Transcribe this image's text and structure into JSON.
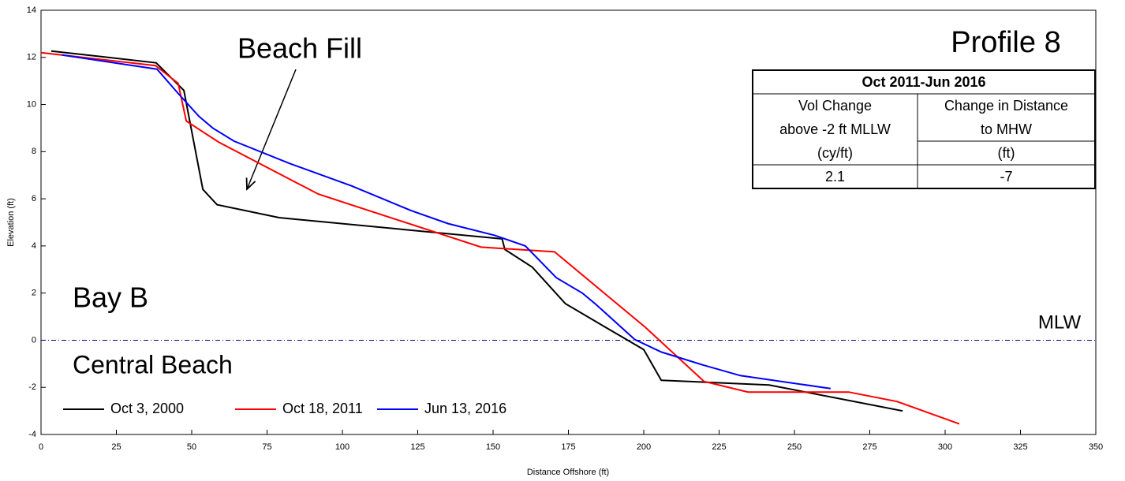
{
  "chart_data": {
    "type": "line",
    "x_label": "Distance Offshore (ft)",
    "y_label": "Elevation (ft)",
    "xlim": [
      0,
      350
    ],
    "xticks": [
      0,
      25,
      50,
      75,
      100,
      125,
      150,
      175,
      200,
      225,
      250,
      275,
      300,
      325,
      350
    ],
    "ylim": [
      -4,
      14
    ],
    "yticks": [
      -4,
      -2,
      0,
      2,
      4,
      6,
      8,
      10,
      12,
      14
    ],
    "series": [
      {
        "name": "Oct 3, 2000",
        "color": "#000000",
        "x": [
          3.4,
          38.2,
          47.4,
          53.7,
          58.4,
          79,
          153,
          153.9,
          163,
          174,
          185.3,
          200,
          205.8,
          241.6,
          285.9
        ],
        "values": [
          12.27,
          11.77,
          10.6,
          6.4,
          5.75,
          5.2,
          4.3,
          3.85,
          3.1,
          1.55,
          0.7,
          -0.4,
          -1.7,
          -1.9,
          -3.0
        ]
      },
      {
        "name": "Oct 18, 2011",
        "color": "#ff0000",
        "x": [
          0,
          38,
          45.5,
          48.2,
          59,
          92,
          146,
          170.4,
          200.5,
          220,
          234.6,
          268,
          284,
          304.7
        ],
        "values": [
          12.2,
          11.65,
          10.9,
          9.3,
          8.4,
          6.2,
          3.95,
          3.75,
          0.55,
          -1.75,
          -2.2,
          -2.2,
          -2.6,
          -3.55
        ]
      },
      {
        "name": "Jun 13, 2016",
        "color": "#0000ff",
        "x": [
          7,
          38.5,
          45.3,
          52.4,
          57,
          64,
          82.5,
          103,
          122.8,
          135,
          150.5,
          160.7,
          171,
          179.6,
          184.3,
          197,
          205.8,
          219.6,
          232,
          262
        ],
        "values": [
          12.1,
          11.5,
          10.5,
          9.5,
          9.0,
          8.45,
          7.5,
          6.55,
          5.5,
          4.95,
          4.45,
          4.0,
          2.65,
          2.0,
          1.5,
          0.03,
          -0.5,
          -1.05,
          -1.5,
          -2.05
        ]
      }
    ],
    "reference_line": {
      "value": 0,
      "label": "MLW",
      "color": "#00008b"
    },
    "annotations": [
      "Profile 8",
      "Beach Fill",
      "Bay B",
      "Central Beach"
    ],
    "table": {
      "title": "Oct 2011-Jun 2016",
      "rows": [
        [
          "Vol Change",
          "Change in Distance"
        ],
        [
          "above -2 ft MLLW",
          "to MHW"
        ],
        [
          "(cy/ft)",
          "(ft)"
        ],
        [
          "2.1",
          "-7"
        ]
      ]
    }
  }
}
